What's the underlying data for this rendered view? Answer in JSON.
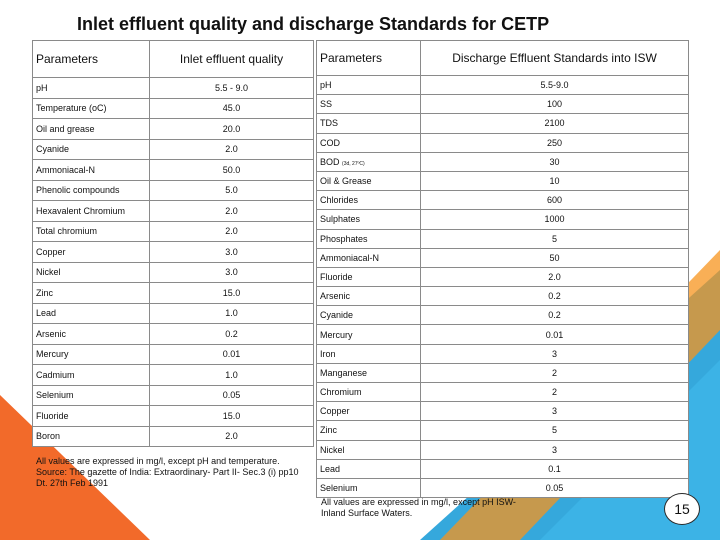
{
  "title": "Inlet effluent quality and discharge Standards for CETP",
  "left_table": {
    "headers": [
      "Parameters",
      "Inlet effluent quality"
    ],
    "rows": [
      {
        "p": "pH",
        "v": "5.5 - 9.0"
      },
      {
        "p": "Temperature (oC)",
        "v": "45.0"
      },
      {
        "p": "Oil and grease",
        "v": "20.0"
      },
      {
        "p": "Cyanide",
        "v": "2.0"
      },
      {
        "p": "Ammoniacal-N",
        "v": "50.0"
      },
      {
        "p": "Phenolic compounds",
        "v": "5.0"
      },
      {
        "p": "Hexavalent Chromium",
        "v": "2.0"
      },
      {
        "p": "Total chromium",
        "v": "2.0"
      },
      {
        "p": "Copper",
        "v": "3.0"
      },
      {
        "p": "Nickel",
        "v": "3.0"
      },
      {
        "p": "Zinc",
        "v": "15.0"
      },
      {
        "p": "Lead",
        "v": "1.0"
      },
      {
        "p": "Arsenic",
        "v": "0.2"
      },
      {
        "p": "Mercury",
        "v": "0.01"
      },
      {
        "p": "Cadmium",
        "v": "1.0"
      },
      {
        "p": "Selenium",
        "v": "0.05"
      },
      {
        "p": "Fluoride",
        "v": "15.0"
      },
      {
        "p": "Boron",
        "v": "2.0"
      }
    ],
    "note": "All values are expressed in mg/l, except pH and temperature. Source: The gazette of India: Extraordinary- Part II- Sec.3 (i) pp10 Dt. 27th Feb 1991"
  },
  "right_table": {
    "headers": [
      "Parameters",
      "Discharge Effluent Standards into ISW"
    ],
    "rows": [
      {
        "p": "pH",
        "v": "5.5-9.0"
      },
      {
        "p": "SS",
        "v": "100"
      },
      {
        "p": "TDS",
        "v": "2100"
      },
      {
        "p": "COD",
        "v": "250"
      },
      {
        "p": "BOD",
        "sub": "(3d, 27ºC)",
        "v": "30"
      },
      {
        "p": "Oil & Grease",
        "v": "10"
      },
      {
        "p": "Chlorides",
        "v": "600"
      },
      {
        "p": "Sulphates",
        "v": "1000"
      },
      {
        "p": "Phosphates",
        "v": "5"
      },
      {
        "p": "Ammoniacal-N",
        "v": "50"
      },
      {
        "p": "Fluoride",
        "v": "2.0"
      },
      {
        "p": "Arsenic",
        "v": "0.2"
      },
      {
        "p": "Cyanide",
        "v": "0.2"
      },
      {
        "p": "Mercury",
        "v": "0.01"
      },
      {
        "p": "Iron",
        "v": "3"
      },
      {
        "p": "Manganese",
        "v": "2"
      },
      {
        "p": "Chromium",
        "v": "2"
      },
      {
        "p": "Copper",
        "v": "3"
      },
      {
        "p": "Zinc",
        "v": "5"
      },
      {
        "p": "Nickel",
        "v": "3"
      },
      {
        "p": "Lead",
        "v": "0.1"
      },
      {
        "p": "Selenium",
        "v": "0.05"
      }
    ],
    "note": "All values are expressed in mg/l, except pH ISW-Inland Surface Waters."
  },
  "page_number": "15",
  "colors": {
    "orange": "#f26a2a",
    "blue": "#1f9fd8",
    "border": "#8a8a8a"
  }
}
